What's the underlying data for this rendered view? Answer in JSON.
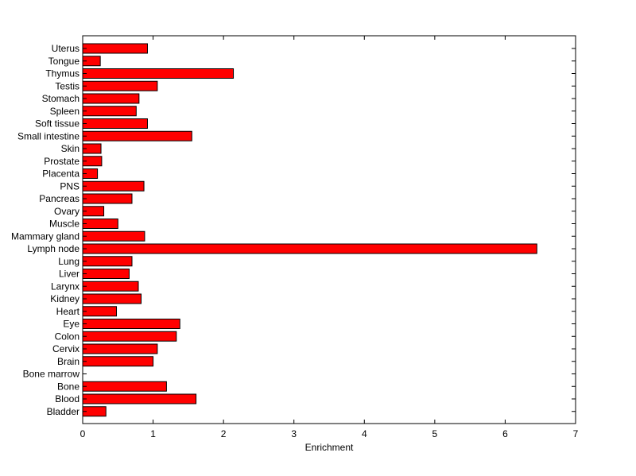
{
  "chart_data": {
    "type": "bar",
    "orientation": "horizontal",
    "title": "",
    "xlabel": "Enrichment",
    "ylabel": "",
    "xlim": [
      0,
      7
    ],
    "xticks": [
      0,
      1,
      2,
      3,
      4,
      5,
      6,
      7
    ],
    "grid": false,
    "bar_color": "#ff0000",
    "bar_edge_color": "#000000",
    "categories": [
      "Uterus",
      "Tongue",
      "Thymus",
      "Testis",
      "Stomach",
      "Spleen",
      "Soft tissue",
      "Small intestine",
      "Skin",
      "Prostate",
      "Placenta",
      "PNS",
      "Pancreas",
      "Ovary",
      "Muscle",
      "Mammary gland",
      "Lymph node",
      "Lung",
      "Liver",
      "Larynx",
      "Kidney",
      "Heart",
      "Eye",
      "Colon",
      "Cervix",
      "Brain",
      "Bone marrow",
      "Bone",
      "Blood",
      "Bladder"
    ],
    "values": [
      0.92,
      0.25,
      2.14,
      1.06,
      0.8,
      0.76,
      0.92,
      1.55,
      0.26,
      0.27,
      0.21,
      0.87,
      0.7,
      0.3,
      0.5,
      0.88,
      6.45,
      0.7,
      0.66,
      0.79,
      0.83,
      0.48,
      1.38,
      1.33,
      1.06,
      1.0,
      0.0,
      1.19,
      1.61,
      0.33
    ]
  }
}
